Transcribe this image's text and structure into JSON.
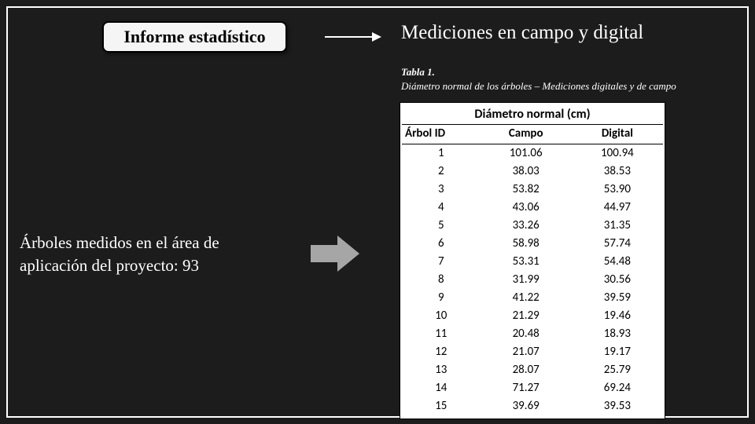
{
  "title_box": "Informe estadístico",
  "section_title": "Mediciones en campo y digital",
  "table_caption_num": "Tabla 1.",
  "table_caption_desc": "Diámetro normal de los árboles – Mediciones digitales y de campo",
  "body_text": "Árboles medidos en el área de aplicación del proyecto: 93",
  "table": {
    "type": "table",
    "title": "Diámetro normal (cm)",
    "columns": [
      "Árbol ID",
      "Campo",
      "Digital"
    ],
    "rows": [
      [
        "1",
        "101.06",
        "100.94"
      ],
      [
        "2",
        "38.03",
        "38.53"
      ],
      [
        "3",
        "53.82",
        "53.90"
      ],
      [
        "4",
        "43.06",
        "44.97"
      ],
      [
        "5",
        "33.26",
        "31.35"
      ],
      [
        "6",
        "58.98",
        "57.74"
      ],
      [
        "7",
        "53.31",
        "54.48"
      ],
      [
        "8",
        "31.99",
        "30.56"
      ],
      [
        "9",
        "41.22",
        "39.59"
      ],
      [
        "10",
        "21.29",
        "19.46"
      ],
      [
        "11",
        "20.48",
        "18.93"
      ],
      [
        "12",
        "21.07",
        "19.17"
      ],
      [
        "13",
        "28.07",
        "25.79"
      ],
      [
        "14",
        "71.27",
        "69.24"
      ],
      [
        "15",
        "39.69",
        "39.53"
      ]
    ],
    "border_color": "#000000",
    "background_color": "#ffffff",
    "text_color": "#000000",
    "header_fontweight": "bold"
  },
  "colors": {
    "slide_bg": "#1c1c1c",
    "frame_border": "#ffffff",
    "title_box_bg": "#f5f5f5",
    "title_box_border": "#000000",
    "arrow_line": "#ffffff",
    "block_arrow": "#a6a6a6",
    "text_light": "#ffffff"
  }
}
